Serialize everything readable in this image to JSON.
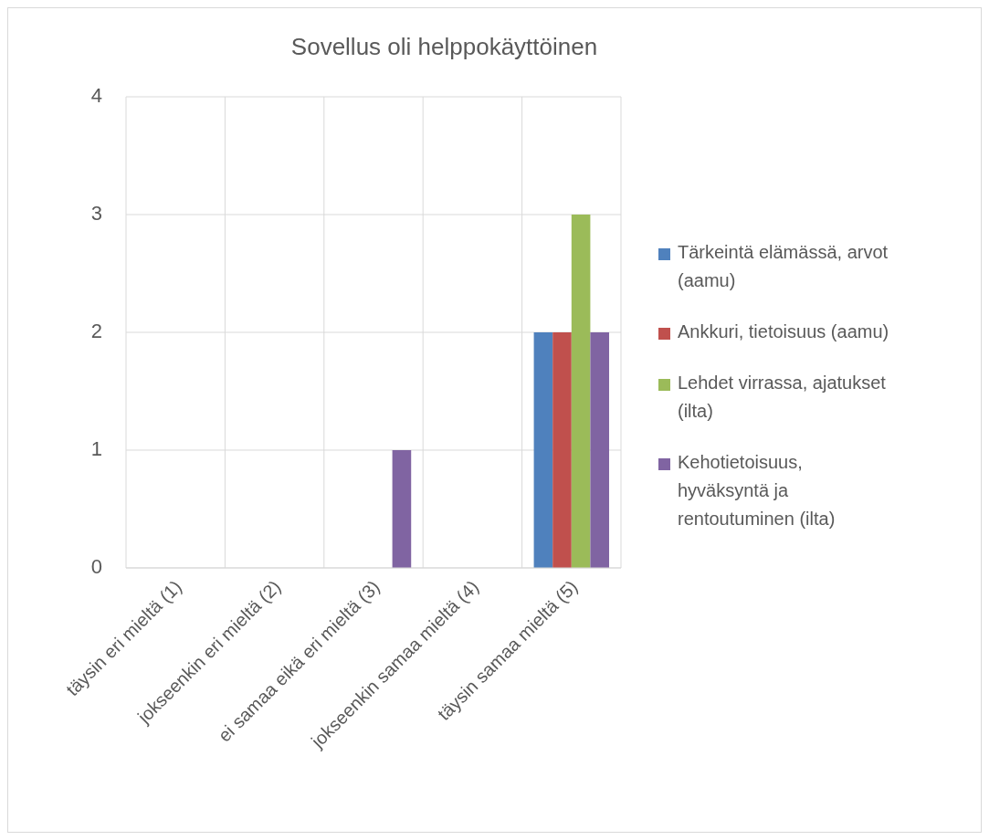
{
  "chart_data": {
    "type": "bar",
    "title": "Sovellus oli helppokäyttöinen",
    "categories": [
      "täysin eri mieltä (1)",
      "jokseenkin eri mieltä (2)",
      "ei samaa eikä eri mieltä (3)",
      "jokseenkin samaa mieltä (4)",
      "täysin samaa mieltä (5)"
    ],
    "series": [
      {
        "name": "Tärkeintä elämässä, arvot (aamu)",
        "color": "#4f81bd",
        "values": [
          0,
          0,
          0,
          0,
          2
        ]
      },
      {
        "name": "Ankkuri, tietoisuus (aamu)",
        "color": "#c0504d",
        "values": [
          0,
          0,
          0,
          0,
          2
        ]
      },
      {
        "name": "Lehdet virrassa, ajatukset (ilta)",
        "color": "#9bbb59",
        "values": [
          0,
          0,
          0,
          0,
          3
        ]
      },
      {
        "name": "Kehotietoisuus, hyväksyntä ja rentoutuminen (ilta)",
        "color": "#8064a2",
        "values": [
          0,
          0,
          1,
          0,
          2
        ]
      }
    ],
    "ylim": [
      0,
      4
    ],
    "yticks": [
      0,
      1,
      2,
      3,
      4
    ],
    "grid": true,
    "legend": "right"
  }
}
